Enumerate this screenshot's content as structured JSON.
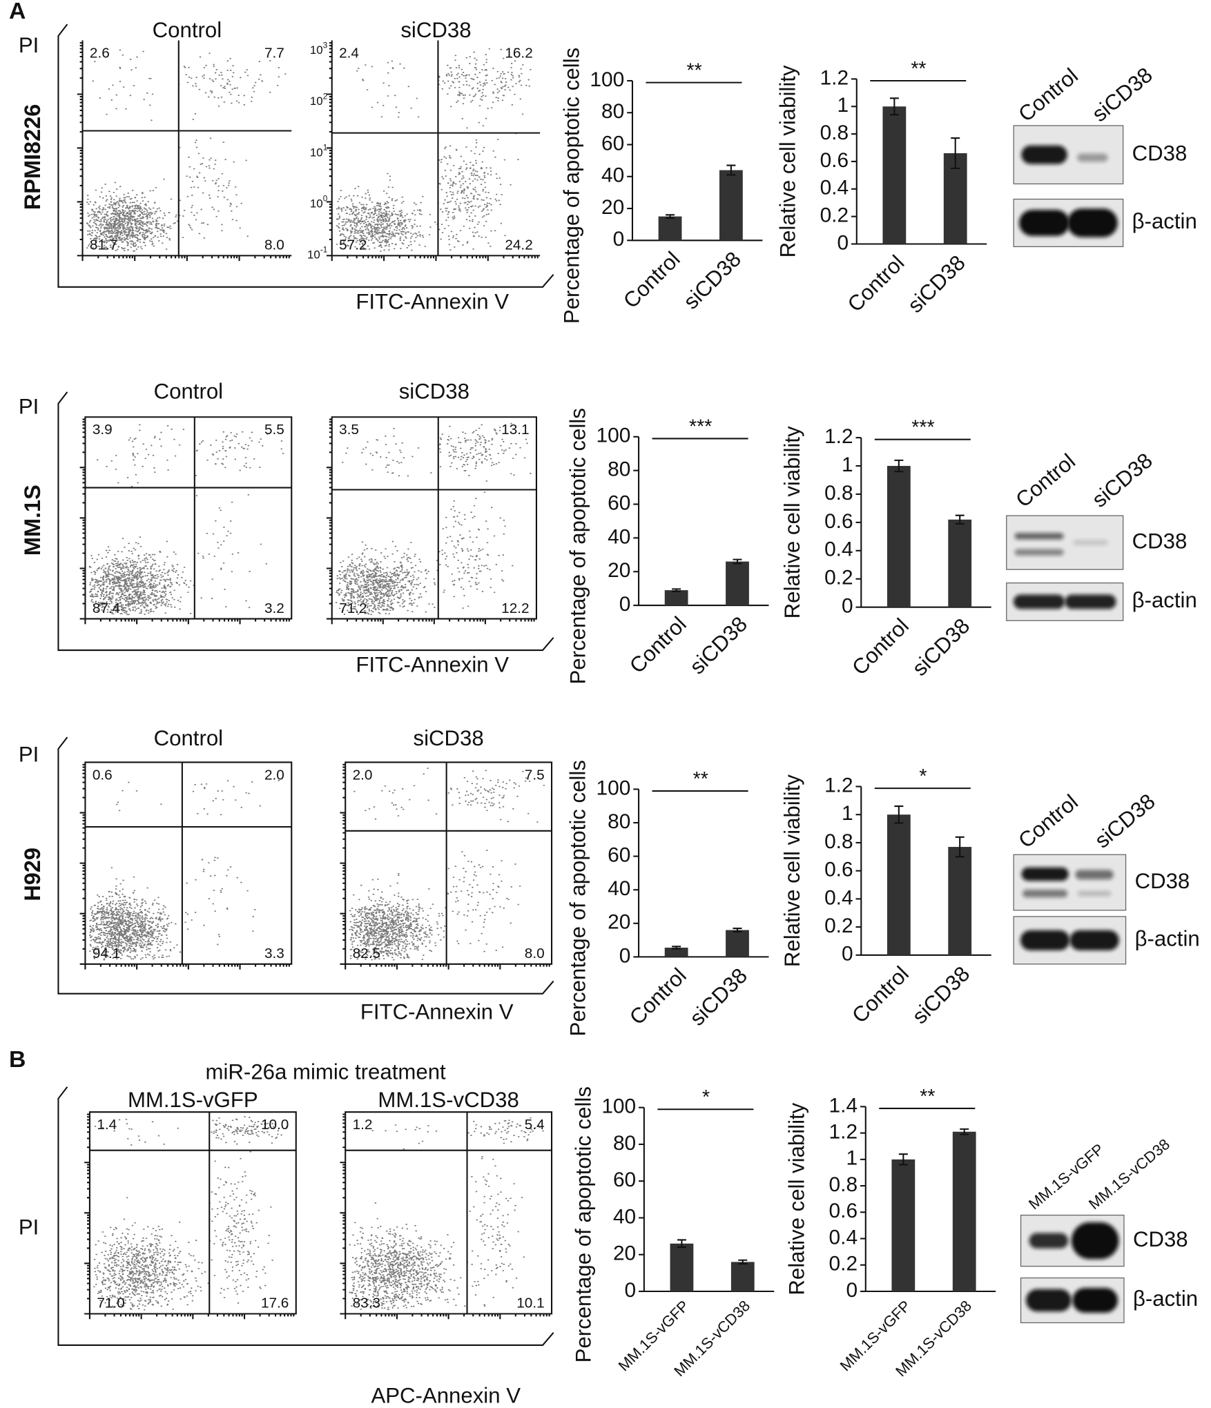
{
  "figure": {
    "panel_labels": [
      "A",
      "B"
    ],
    "rows": [
      {
        "cell_line": "RPMI8226",
        "y_axis_label": "PI",
        "x_axis_label": "FITC-Annexin V",
        "flow": [
          {
            "title": "Control",
            "quadrants": {
              "ul": "2.6",
              "ur": "7.7",
              "ll": "81.7",
              "lr": "8.0"
            }
          },
          {
            "title": "siCD38",
            "quadrants": {
              "ul": "2.4",
              "ur": "16.2",
              "ll": "57.2",
              "lr": "24.2"
            },
            "yticks": [
              {
                "base": "10",
                "exp": "3"
              },
              {
                "base": "10",
                "exp": "2"
              },
              {
                "base": "10",
                "exp": "1"
              },
              {
                "base": "10",
                "exp": "0"
              },
              {
                "base": "10",
                "exp": "-1"
              }
            ]
          }
        ],
        "blot": {
          "lanes": [
            "Control",
            "siCD38"
          ],
          "bands": [
            "CD38",
            "β-actin"
          ]
        }
      },
      {
        "cell_line": "MM.1S",
        "y_axis_label": "PI",
        "x_axis_label": "FITC-Annexin V",
        "flow": [
          {
            "title": "Control",
            "quadrants": {
              "ul": "3.9",
              "ur": "5.5",
              "ll": "87.4",
              "lr": "3.2"
            }
          },
          {
            "title": "siCD38",
            "quadrants": {
              "ul": "3.5",
              "ur": "13.1",
              "ll": "71.2",
              "lr": "12.2"
            }
          }
        ],
        "blot": {
          "lanes": [
            "Control",
            "siCD38"
          ],
          "bands": [
            "CD38",
            "β-actin"
          ]
        }
      },
      {
        "cell_line": "H929",
        "y_axis_label": "PI",
        "x_axis_label": "FITC-Annexin V",
        "flow": [
          {
            "title": "Control",
            "quadrants": {
              "ul": "0.6",
              "ur": "2.0",
              "ll": "94.1",
              "lr": "3.3"
            }
          },
          {
            "title": "siCD38",
            "quadrants": {
              "ul": "2.0",
              "ur": "7.5",
              "ll": "82.5",
              "lr": "8.0"
            }
          }
        ],
        "blot": {
          "lanes": [
            "Control",
            "siCD38"
          ],
          "bands": [
            "CD38",
            "β-actin"
          ]
        }
      },
      {
        "treatment": "miR-26a mimic treatment",
        "y_axis_label": "PI",
        "x_axis_label": "APC-Annexin V",
        "flow": [
          {
            "title": "MM.1S-vGFP",
            "quadrants": {
              "ul": "1.4",
              "ur": "10.0",
              "ll": "71.0",
              "lr": "17.6"
            }
          },
          {
            "title": "MM.1S-vCD38",
            "quadrants": {
              "ul": "1.2",
              "ur": "5.4",
              "ll": "83.3",
              "lr": "10.1"
            }
          }
        ],
        "blot": {
          "lanes": [
            "MM.1S-vGFP",
            "MM.1S-vCD38"
          ],
          "bands": [
            "CD38",
            "β-actin"
          ]
        }
      }
    ]
  },
  "chart_data": [
    {
      "type": "bar",
      "ylabel": "Percentage of apoptotic cells",
      "categories": [
        "Control",
        "siCD38"
      ],
      "values": [
        15,
        44
      ],
      "errors": [
        1,
        3
      ],
      "color": "#333333",
      "ylim": [
        0,
        100
      ],
      "yticks": [
        0,
        20,
        40,
        60,
        80,
        100
      ],
      "significance": "**"
    },
    {
      "type": "bar",
      "ylabel": "Relative cell viability",
      "categories": [
        "Control",
        "siCD38"
      ],
      "values": [
        1,
        0.66
      ],
      "errors": [
        0.06,
        0.11
      ],
      "color": "#333333",
      "ylim": [
        0,
        1.2
      ],
      "yticks": [
        0,
        0.2,
        0.4,
        0.6,
        0.8,
        1,
        1.2
      ],
      "significance": "**"
    },
    {
      "type": "bar",
      "ylabel": "Percentage of apoptotic cells",
      "categories": [
        "Control",
        "siCD38"
      ],
      "values": [
        9,
        26
      ],
      "errors": [
        0.7,
        1.2
      ],
      "color": "#333333",
      "ylim": [
        0,
        100
      ],
      "yticks": [
        0,
        20,
        40,
        60,
        80,
        100
      ],
      "significance": "***"
    },
    {
      "type": "bar",
      "ylabel": "Relative cell viability",
      "categories": [
        "Control",
        "siCD38"
      ],
      "values": [
        1,
        0.62
      ],
      "errors": [
        0.04,
        0.03
      ],
      "color": "#333333",
      "ylim": [
        0,
        1.2
      ],
      "yticks": [
        0,
        0.2,
        0.4,
        0.6,
        0.8,
        1,
        1.2
      ],
      "significance": "***"
    },
    {
      "type": "bar",
      "ylabel": "Percentage of apoptotic cells",
      "categories": [
        "Control",
        "siCD38"
      ],
      "values": [
        5.5,
        16
      ],
      "errors": [
        0.7,
        1
      ],
      "color": "#333333",
      "ylim": [
        0,
        100
      ],
      "yticks": [
        0,
        20,
        40,
        60,
        80,
        100
      ],
      "significance": "**"
    },
    {
      "type": "bar",
      "ylabel": "Relative cell viability",
      "categories": [
        "Control",
        "siCD38"
      ],
      "values": [
        1,
        0.77
      ],
      "errors": [
        0.06,
        0.07
      ],
      "color": "#333333",
      "ylim": [
        0,
        1.2
      ],
      "yticks": [
        0,
        0.2,
        0.4,
        0.6,
        0.8,
        1,
        1.2
      ],
      "significance": "*"
    },
    {
      "type": "bar",
      "ylabel": "Percentage of apoptotic cells",
      "categories": [
        "MM.1S-vGFP",
        "MM.1S-vCD38"
      ],
      "values": [
        26,
        16
      ],
      "errors": [
        2,
        1
      ],
      "color": "#333333",
      "ylim": [
        0,
        100
      ],
      "yticks": [
        0,
        20,
        40,
        60,
        80,
        100
      ],
      "significance": "*"
    },
    {
      "type": "bar",
      "ylabel": "Relative cell viability",
      "categories": [
        "MM.1S-vGFP",
        "MM.1S-vCD38"
      ],
      "values": [
        1,
        1.21
      ],
      "errors": [
        0.04,
        0.02
      ],
      "color": "#333333",
      "ylim": [
        0,
        1.4
      ],
      "yticks": [
        0,
        0.2,
        0.4,
        0.6,
        0.8,
        1,
        1.2,
        1.4
      ],
      "significance": "**"
    }
  ]
}
